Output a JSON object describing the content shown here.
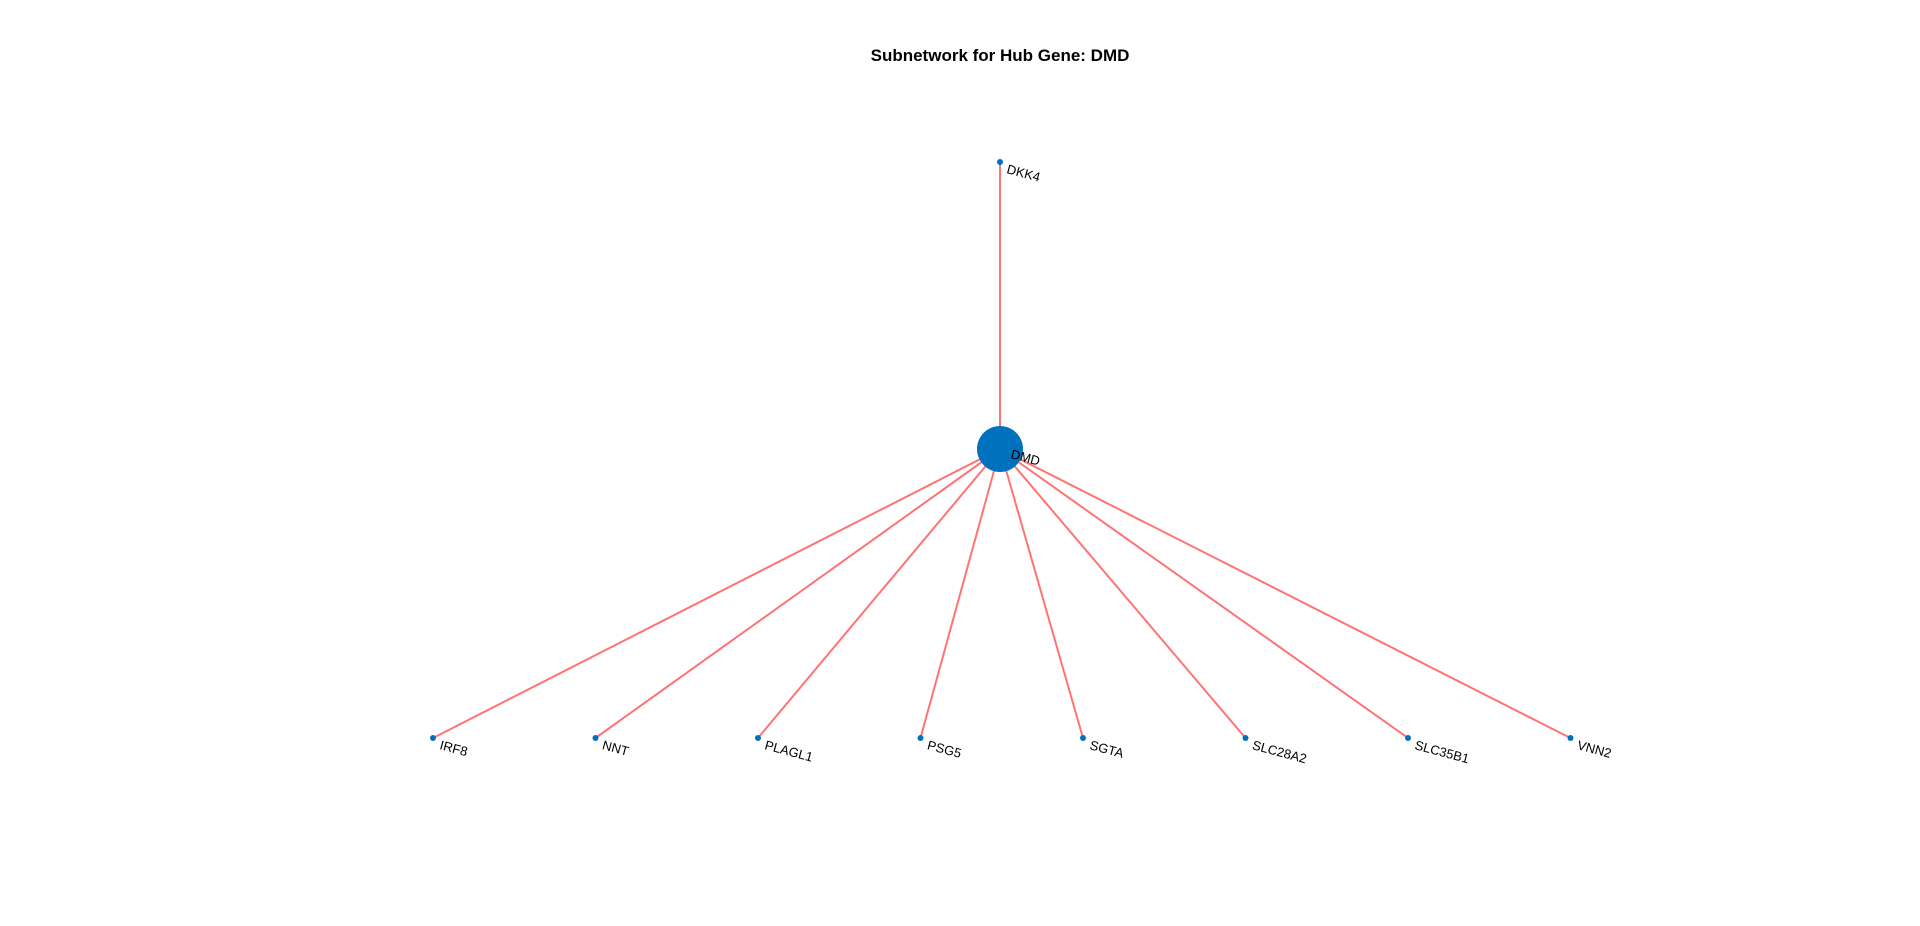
{
  "title": "Subnetwork for Hub Gene: DMD",
  "colors": {
    "edge": "#ff7373",
    "node": "#0072bd",
    "label": "#000000",
    "background": "#ffffff"
  },
  "hub": {
    "label": "DMD"
  },
  "top_nodes": [
    {
      "label": "DKK4"
    }
  ],
  "bottom_nodes": [
    {
      "label": "IRF8"
    },
    {
      "label": "NNT"
    },
    {
      "label": "PLAGL1"
    },
    {
      "label": "PSG5"
    },
    {
      "label": "SGTA"
    },
    {
      "label": "SLC28A2"
    },
    {
      "label": "SLC35B1"
    },
    {
      "label": "VNN2"
    }
  ]
}
